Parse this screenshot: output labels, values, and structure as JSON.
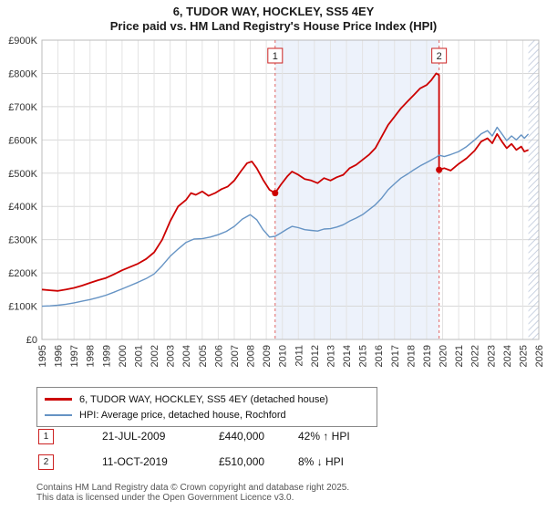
{
  "title": "6, TUDOR WAY, HOCKLEY, SS5 4EY",
  "subtitle": "Price paid vs. HM Land Registry's House Price Index (HPI)",
  "legend": {
    "items": [
      {
        "label": "6, TUDOR WAY, HOCKLEY, SS5 4EY (detached house)",
        "color": "#cc0000"
      },
      {
        "label": "HPI: Average price, detached house, Rochford",
        "color": "#6593c4"
      }
    ]
  },
  "annotations": [
    {
      "num": "1",
      "date": "21-JUL-2009",
      "price": "£440,000",
      "hpi_diff": "42% ↑ HPI"
    },
    {
      "num": "2",
      "date": "11-OCT-2019",
      "price": "£510,000",
      "hpi_diff": "8% ↓ HPI"
    }
  ],
  "footer": {
    "line1": "Contains HM Land Registry data © Crown copyright and database right 2025.",
    "line2": "This data is licensed under the Open Government Licence v3.0."
  },
  "chart_data": {
    "type": "line",
    "title": "6, TUDOR WAY, HOCKLEY, SS5 4EY",
    "subtitle": "Price paid vs. HM Land Registry's House Price Index (HPI)",
    "x_range": [
      1995,
      2026
    ],
    "y_range": [
      0,
      900000
    ],
    "y_tick_step": 100000,
    "y_tick_labels": [
      "£0",
      "£100K",
      "£200K",
      "£300K",
      "£400K",
      "£500K",
      "£600K",
      "£700K",
      "£800K",
      "£900K"
    ],
    "x_ticks": [
      1995,
      1996,
      1997,
      1998,
      1999,
      2000,
      2001,
      2002,
      2003,
      2004,
      2005,
      2006,
      2007,
      2008,
      2009,
      2010,
      2011,
      2012,
      2013,
      2014,
      2015,
      2016,
      2017,
      2018,
      2019,
      2020,
      2021,
      2022,
      2023,
      2024,
      2025,
      2026
    ],
    "grid": true,
    "legend_position": "bottom",
    "shaded_region": [
      2009.55,
      2019.78
    ],
    "shaded_color": "#edf2fb",
    "hatch_region": [
      2025.35,
      2026
    ],
    "hatch_color": "#b9c4d8",
    "sale_line_color": "#e06666",
    "marker_box_border": "#cc2222",
    "sales": [
      {
        "label": "1",
        "x": 2009.55,
        "price": 440000
      },
      {
        "label": "2",
        "x": 2019.78,
        "price": 510000
      }
    ],
    "series": [
      {
        "name": "6, TUDOR WAY, HOCKLEY, SS5 4EY (detached house)",
        "color": "#cc0000",
        "points": [
          [
            1995.0,
            150000
          ],
          [
            1995.5,
            148000
          ],
          [
            1996.0,
            146000
          ],
          [
            1996.5,
            150000
          ],
          [
            1997.0,
            155000
          ],
          [
            1997.5,
            162000
          ],
          [
            1998.0,
            170000
          ],
          [
            1998.5,
            178000
          ],
          [
            1999.0,
            185000
          ],
          [
            1999.5,
            196000
          ],
          [
            2000.0,
            208000
          ],
          [
            2000.5,
            218000
          ],
          [
            2001.0,
            228000
          ],
          [
            2001.5,
            242000
          ],
          [
            2002.0,
            262000
          ],
          [
            2002.5,
            300000
          ],
          [
            2003.0,
            355000
          ],
          [
            2003.5,
            400000
          ],
          [
            2004.0,
            420000
          ],
          [
            2004.3,
            440000
          ],
          [
            2004.6,
            435000
          ],
          [
            2005.0,
            445000
          ],
          [
            2005.4,
            432000
          ],
          [
            2005.8,
            440000
          ],
          [
            2006.2,
            452000
          ],
          [
            2006.6,
            460000
          ],
          [
            2007.0,
            478000
          ],
          [
            2007.4,
            505000
          ],
          [
            2007.8,
            530000
          ],
          [
            2008.1,
            535000
          ],
          [
            2008.4,
            515000
          ],
          [
            2008.8,
            480000
          ],
          [
            2009.2,
            450000
          ],
          [
            2009.55,
            440000
          ],
          [
            2009.9,
            465000
          ],
          [
            2010.3,
            490000
          ],
          [
            2010.6,
            505000
          ],
          [
            2011.0,
            495000
          ],
          [
            2011.4,
            482000
          ],
          [
            2011.8,
            478000
          ],
          [
            2012.2,
            470000
          ],
          [
            2012.6,
            485000
          ],
          [
            2013.0,
            478000
          ],
          [
            2013.4,
            488000
          ],
          [
            2013.8,
            495000
          ],
          [
            2014.2,
            515000
          ],
          [
            2014.6,
            525000
          ],
          [
            2015.0,
            540000
          ],
          [
            2015.4,
            555000
          ],
          [
            2015.8,
            575000
          ],
          [
            2016.2,
            610000
          ],
          [
            2016.6,
            645000
          ],
          [
            2017.0,
            670000
          ],
          [
            2017.4,
            695000
          ],
          [
            2017.8,
            715000
          ],
          [
            2018.2,
            735000
          ],
          [
            2018.6,
            755000
          ],
          [
            2019.0,
            765000
          ],
          [
            2019.3,
            780000
          ],
          [
            2019.6,
            800000
          ],
          [
            2019.78,
            795000
          ],
          [
            2019.78,
            510000
          ],
          [
            2020.1,
            515000
          ],
          [
            2020.5,
            508000
          ],
          [
            2021.0,
            528000
          ],
          [
            2021.5,
            545000
          ],
          [
            2022.0,
            568000
          ],
          [
            2022.4,
            595000
          ],
          [
            2022.8,
            605000
          ],
          [
            2023.1,
            590000
          ],
          [
            2023.4,
            618000
          ],
          [
            2023.7,
            595000
          ],
          [
            2024.0,
            575000
          ],
          [
            2024.3,
            588000
          ],
          [
            2024.6,
            570000
          ],
          [
            2024.9,
            580000
          ],
          [
            2025.1,
            565000
          ],
          [
            2025.35,
            570000
          ]
        ]
      },
      {
        "name": "HPI: Average price, detached house, Rochford",
        "color": "#6593c4",
        "points": [
          [
            1995.0,
            100000
          ],
          [
            1995.5,
            101000
          ],
          [
            1996.0,
            103000
          ],
          [
            1996.5,
            106000
          ],
          [
            1997.0,
            110000
          ],
          [
            1997.5,
            115000
          ],
          [
            1998.0,
            120000
          ],
          [
            1998.5,
            126000
          ],
          [
            1999.0,
            133000
          ],
          [
            1999.5,
            142000
          ],
          [
            2000.0,
            152000
          ],
          [
            2000.5,
            162000
          ],
          [
            2001.0,
            172000
          ],
          [
            2001.5,
            183000
          ],
          [
            2002.0,
            197000
          ],
          [
            2002.5,
            222000
          ],
          [
            2003.0,
            250000
          ],
          [
            2003.5,
            272000
          ],
          [
            2004.0,
            292000
          ],
          [
            2004.5,
            302000
          ],
          [
            2005.0,
            303000
          ],
          [
            2005.5,
            308000
          ],
          [
            2006.0,
            315000
          ],
          [
            2006.5,
            325000
          ],
          [
            2007.0,
            340000
          ],
          [
            2007.5,
            362000
          ],
          [
            2008.0,
            375000
          ],
          [
            2008.4,
            360000
          ],
          [
            2008.8,
            330000
          ],
          [
            2009.2,
            308000
          ],
          [
            2009.55,
            310000
          ],
          [
            2009.9,
            320000
          ],
          [
            2010.3,
            332000
          ],
          [
            2010.6,
            340000
          ],
          [
            2011.0,
            336000
          ],
          [
            2011.4,
            330000
          ],
          [
            2011.8,
            328000
          ],
          [
            2012.2,
            326000
          ],
          [
            2012.6,
            332000
          ],
          [
            2013.0,
            333000
          ],
          [
            2013.4,
            338000
          ],
          [
            2013.8,
            345000
          ],
          [
            2014.2,
            356000
          ],
          [
            2014.6,
            365000
          ],
          [
            2015.0,
            375000
          ],
          [
            2015.4,
            390000
          ],
          [
            2015.8,
            405000
          ],
          [
            2016.2,
            425000
          ],
          [
            2016.6,
            450000
          ],
          [
            2017.0,
            468000
          ],
          [
            2017.4,
            485000
          ],
          [
            2017.8,
            497000
          ],
          [
            2018.2,
            510000
          ],
          [
            2018.6,
            522000
          ],
          [
            2019.0,
            532000
          ],
          [
            2019.3,
            540000
          ],
          [
            2019.6,
            548000
          ],
          [
            2019.78,
            554000
          ],
          [
            2020.1,
            550000
          ],
          [
            2020.5,
            556000
          ],
          [
            2021.0,
            565000
          ],
          [
            2021.5,
            580000
          ],
          [
            2022.0,
            600000
          ],
          [
            2022.4,
            618000
          ],
          [
            2022.8,
            628000
          ],
          [
            2023.1,
            612000
          ],
          [
            2023.4,
            638000
          ],
          [
            2023.7,
            618000
          ],
          [
            2024.0,
            598000
          ],
          [
            2024.3,
            612000
          ],
          [
            2024.6,
            600000
          ],
          [
            2024.9,
            615000
          ],
          [
            2025.1,
            605000
          ],
          [
            2025.35,
            618000
          ]
        ]
      }
    ]
  }
}
